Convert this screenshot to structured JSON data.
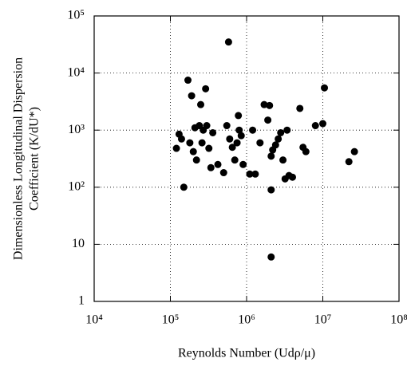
{
  "chart_data": {
    "type": "scatter",
    "xlabel": "Reynolds Number (Udρ/μ)",
    "ylabel": [
      "Dimensionless Longitudinal Dispersion",
      "Coefficient (K/dU*)"
    ],
    "x": [
      120000,
      130000,
      140000,
      150000,
      170000,
      180000,
      190000,
      200000,
      210000,
      220000,
      240000,
      250000,
      260000,
      270000,
      290000,
      300000,
      320000,
      340000,
      360000,
      420000,
      500000,
      550000,
      580000,
      600000,
      650000,
      700000,
      750000,
      780000,
      800000,
      850000,
      900000,
      1100000,
      1200000,
      1300000,
      1500000,
      1700000,
      1900000,
      2000000,
      2100000,
      2100000,
      2100000,
      2200000,
      2400000,
      2600000,
      2800000,
      3000000,
      3200000,
      3400000,
      3600000,
      4000000,
      5000000,
      5500000,
      6000000,
      8000000,
      10000000,
      10500000,
      22000000,
      26000000
    ],
    "values": [
      480,
      850,
      700,
      100,
      7500,
      600,
      4000,
      420,
      1100,
      300,
      1200,
      2800,
      600,
      1000,
      5300,
      1200,
      480,
      220,
      900,
      250,
      180,
      1200,
      35000,
      700,
      500,
      300,
      600,
      1800,
      1000,
      800,
      250,
      170,
      1000,
      170,
      600,
      2800,
      1500,
      2700,
      350,
      90,
      6,
      450,
      550,
      700,
      900,
      300,
      140,
      1000,
      160,
      150,
      2400,
      500,
      420,
      1200,
      1300,
      5500,
      280,
      420
    ],
    "color": "#000000",
    "xscale": "log",
    "yscale": "log",
    "xlim": [
      10000,
      100000000
    ],
    "ylim": [
      1,
      100000
    ],
    "xticks": [
      {
        "value": 10000,
        "label": "10⁴"
      },
      {
        "value": 100000,
        "label": "10⁵"
      },
      {
        "value": 1000000,
        "label": "10⁶"
      },
      {
        "value": 10000000,
        "label": "10⁷"
      },
      {
        "value": 100000000,
        "label": "10⁸"
      }
    ],
    "yticks": [
      1,
      10,
      {
        "value": 100,
        "label": "10²"
      },
      {
        "value": 1000,
        "label": "10³"
      },
      {
        "value": 10000,
        "label": "10⁴"
      },
      {
        "value": 100000,
        "label": "10⁵"
      }
    ],
    "grid": true
  }
}
